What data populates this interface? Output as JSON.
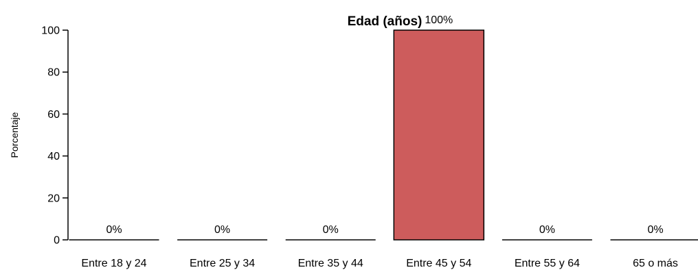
{
  "chart_data": {
    "type": "bar",
    "title": "Edad (años)",
    "xlabel": "",
    "ylabel": "Porcentaje",
    "categories": [
      "Entre 18 y 24",
      "Entre 25 y 34",
      "Entre 35 y 44",
      "Entre 45 y 54",
      "Entre 55 y 64",
      "65 o más"
    ],
    "values": [
      0,
      0,
      0,
      100,
      0,
      0
    ],
    "data_labels": [
      "0%",
      "0%",
      "0%",
      "100%",
      "0%",
      "0%"
    ],
    "ylim": [
      0,
      100
    ],
    "yticks": [
      0,
      20,
      40,
      60,
      80,
      100
    ],
    "ytick_labels": [
      "0",
      "20",
      "40",
      "60",
      "80",
      "100"
    ],
    "grid": false,
    "bar_color": "#cd5c5c",
    "bar_edge_color": "#000000"
  }
}
